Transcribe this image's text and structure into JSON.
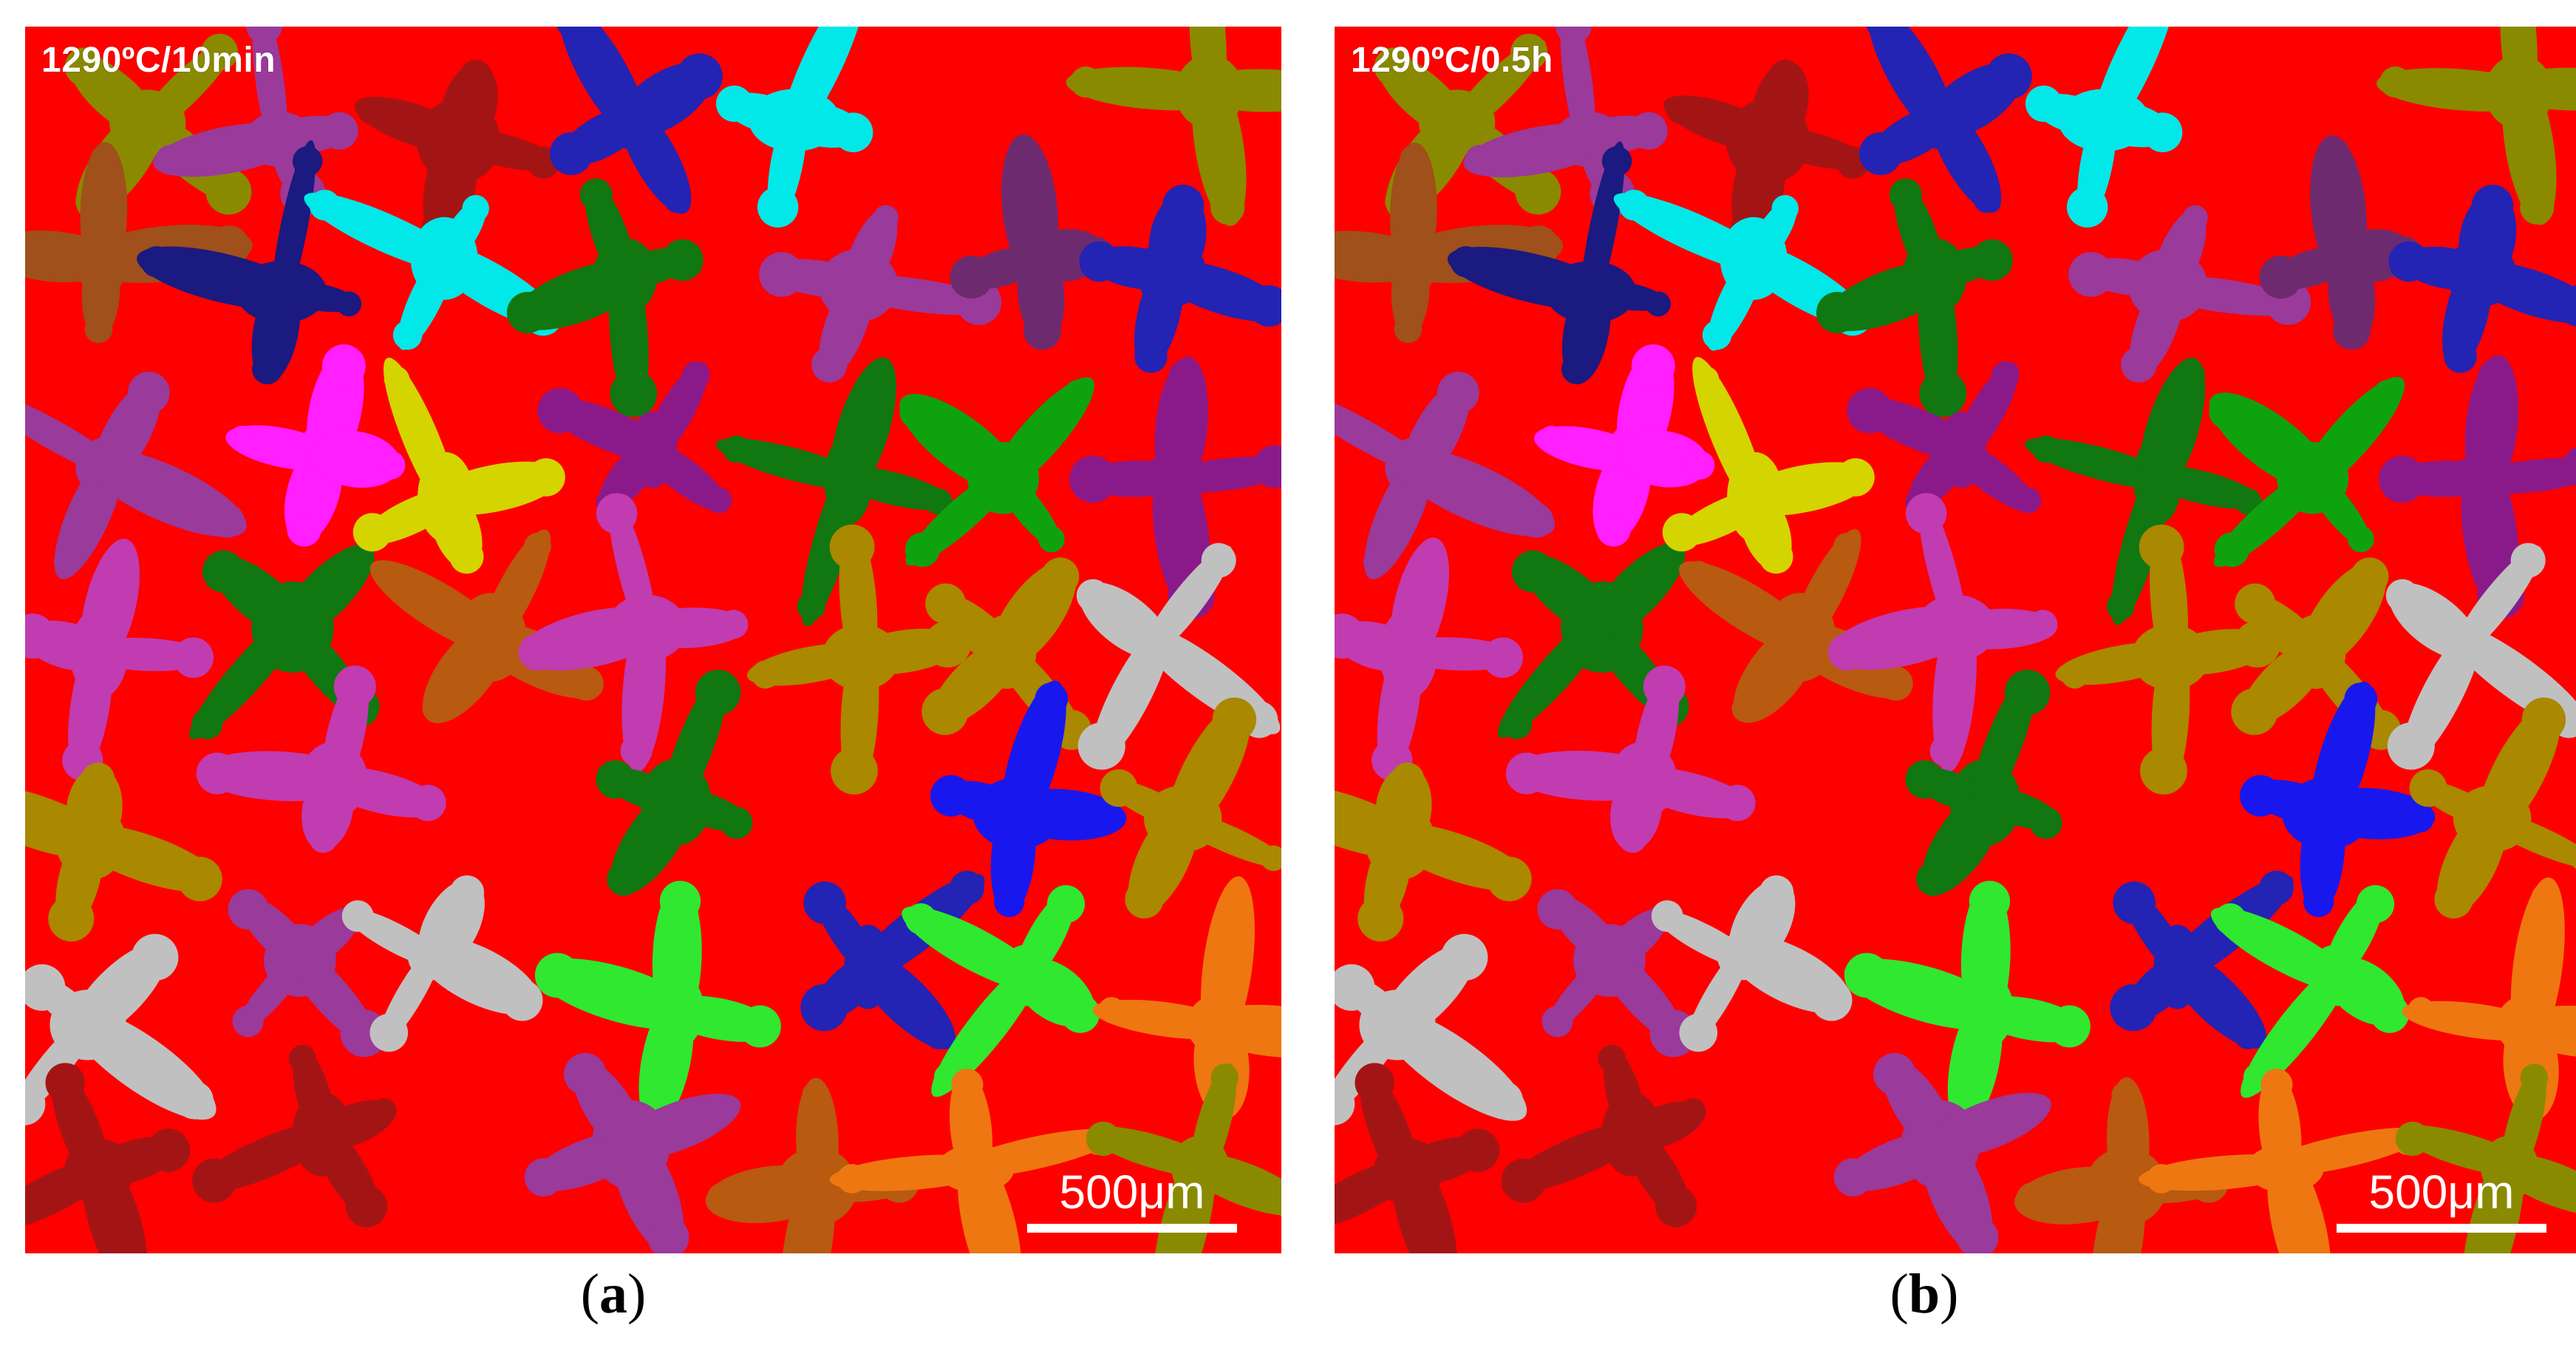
{
  "panels": [
    {
      "id": "a",
      "condition": "1290ºC/10min",
      "scale_label": "500μm",
      "caption": "a"
    },
    {
      "id": "b",
      "condition": "1290ºC/0.5h",
      "scale_label": "500μm",
      "caption": "b"
    }
  ],
  "colors": {
    "matrix": "#ff0000",
    "grains": [
      "#ff1fff",
      "#1818ee",
      "#1a1a80",
      "#a0501a",
      "#8a1a1a",
      "#d4d400",
      "#117711",
      "#0fa20f",
      "#007878",
      "#8a1a8a",
      "#c03cb0",
      "#00e8e8",
      "#8a8a00",
      "#aa8800",
      "#b85a10",
      "#c0c0c0",
      "#7a3a10",
      "#ee7711",
      "#9a3a9a",
      "#1e2b8a",
      "#2323b4",
      "#6e2a6e",
      "#a31515",
      "#2fe82f"
    ]
  }
}
